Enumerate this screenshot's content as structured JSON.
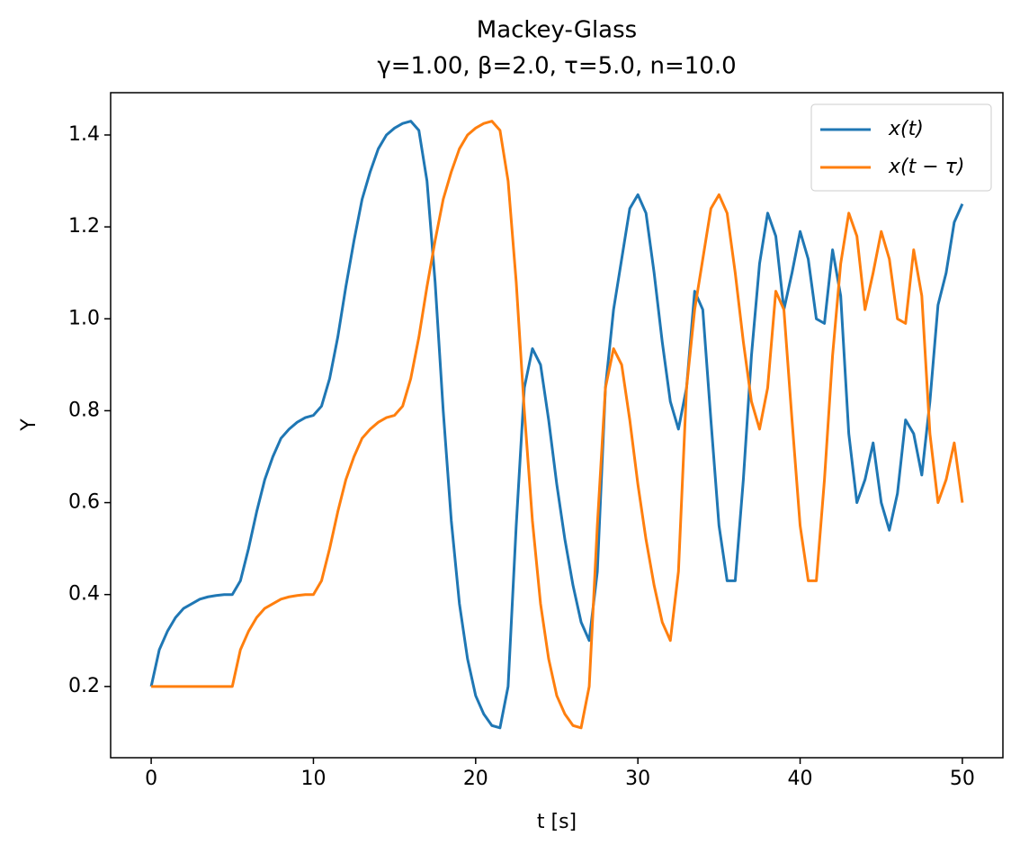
{
  "chart_data": {
    "type": "line",
    "title": "Mackey-Glass",
    "subtitle": "γ=1.00, β=2.0, τ=5.0, n=10.0",
    "x_label": "t [s]",
    "y_label": "Y",
    "xlim": [
      -2.5,
      52.5
    ],
    "ylim": [
      0.045,
      1.492
    ],
    "xticks": [
      0,
      10,
      20,
      30,
      40,
      50
    ],
    "yticks": [
      0.2,
      0.4,
      0.6,
      0.8,
      {
        "value": 1.0,
        "label": "1.0"
      },
      1.2,
      1.4
    ],
    "grid": false,
    "legend": "upper right",
    "x": [
      0,
      0.5,
      1,
      1.5,
      2,
      2.5,
      3,
      3.5,
      4,
      4.5,
      5,
      5.5,
      6,
      6.5,
      7,
      7.5,
      8,
      8.5,
      9,
      9.5,
      10,
      10.5,
      11,
      11.5,
      12,
      12.5,
      13,
      13.5,
      14,
      14.5,
      15,
      15.5,
      16,
      16.5,
      17,
      17.5,
      18,
      18.5,
      19,
      19.5,
      20,
      20.5,
      21,
      21.5,
      22,
      22.5,
      23,
      23.5,
      24,
      24.5,
      25,
      25.5,
      26,
      26.5,
      27,
      27.5,
      28,
      28.5,
      29,
      29.5,
      30,
      30.5,
      31,
      31.5,
      32,
      32.5,
      33,
      33.5,
      34,
      34.5,
      35,
      35.5,
      36,
      36.5,
      37,
      37.5,
      38,
      38.5,
      39,
      39.5,
      40,
      40.5,
      41,
      41.5,
      42,
      42.5,
      43,
      43.5,
      44,
      44.5,
      45,
      45.5,
      46,
      46.5,
      47,
      47.5,
      48,
      48.5,
      49,
      49.5,
      50
    ],
    "series": [
      {
        "name": "x(t)",
        "color": "#1f77b4",
        "values": [
          0.2,
          0.28,
          0.32,
          0.35,
          0.37,
          0.38,
          0.39,
          0.395,
          0.398,
          0.4,
          0.4,
          0.43,
          0.5,
          0.58,
          0.65,
          0.7,
          0.74,
          0.76,
          0.775,
          0.785,
          0.79,
          0.81,
          0.87,
          0.96,
          1.07,
          1.17,
          1.26,
          1.32,
          1.37,
          1.4,
          1.415,
          1.425,
          1.43,
          1.41,
          1.3,
          1.08,
          0.8,
          0.56,
          0.38,
          0.26,
          0.18,
          0.14,
          0.115,
          0.11,
          0.2,
          0.55,
          0.85,
          0.935,
          0.9,
          0.78,
          0.64,
          0.52,
          0.42,
          0.34,
          0.3,
          0.45,
          0.85,
          1.02,
          1.13,
          1.24,
          1.27,
          1.23,
          1.1,
          0.95,
          0.82,
          0.76,
          0.85,
          1.06,
          1.02,
          0.78,
          0.55,
          0.43,
          0.43,
          0.65,
          0.92,
          1.12,
          1.23,
          1.18,
          1.02,
          1.1,
          1.19,
          1.13,
          1.0,
          0.99,
          1.15,
          1.05,
          0.75,
          0.6,
          0.65,
          0.73,
          0.6,
          0.54,
          0.62,
          0.78,
          0.75,
          0.66,
          0.82,
          1.03,
          1.1,
          1.21,
          1.25
        ]
      },
      {
        "name": "x(t − τ)",
        "color": "#ff7f0e",
        "values": [
          0.2,
          0.2,
          0.2,
          0.2,
          0.2,
          0.2,
          0.2,
          0.2,
          0.2,
          0.2,
          0.2,
          0.28,
          0.32,
          0.35,
          0.37,
          0.38,
          0.39,
          0.395,
          0.398,
          0.4,
          0.4,
          0.43,
          0.5,
          0.58,
          0.65,
          0.7,
          0.74,
          0.76,
          0.775,
          0.785,
          0.79,
          0.81,
          0.87,
          0.96,
          1.07,
          1.17,
          1.26,
          1.32,
          1.37,
          1.4,
          1.415,
          1.425,
          1.43,
          1.41,
          1.3,
          1.08,
          0.8,
          0.56,
          0.38,
          0.26,
          0.18,
          0.14,
          0.115,
          0.11,
          0.2,
          0.55,
          0.85,
          0.935,
          0.9,
          0.78,
          0.64,
          0.52,
          0.42,
          0.34,
          0.3,
          0.45,
          0.85,
          1.02,
          1.13,
          1.24,
          1.27,
          1.23,
          1.1,
          0.95,
          0.82,
          0.76,
          0.85,
          1.06,
          1.02,
          0.78,
          0.55,
          0.43,
          0.43,
          0.65,
          0.92,
          1.12,
          1.23,
          1.18,
          1.02,
          1.1,
          1.19,
          1.13,
          1.0,
          0.99,
          1.15,
          1.05,
          0.75,
          0.6,
          0.65,
          0.73,
          0.6
        ]
      }
    ]
  }
}
